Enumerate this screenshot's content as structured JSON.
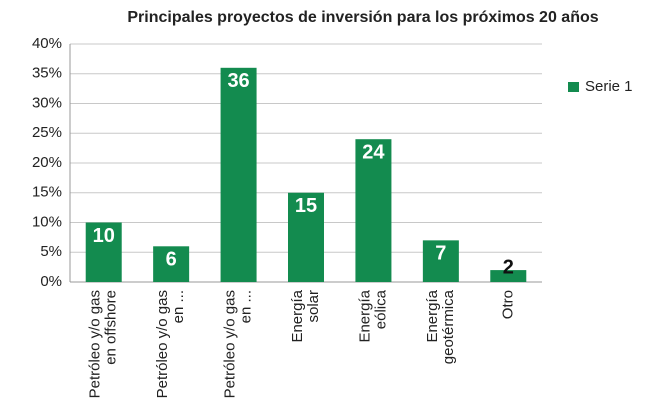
{
  "chart_data": {
    "type": "bar",
    "title": "Principales proyectos de inversión para los próximos 20 años",
    "categories": [
      [
        "Petróleo y/o gas",
        "en offshore"
      ],
      [
        "Petróleo y/o gas",
        "en ..."
      ],
      [
        "Petróleo y/o gas",
        "en ..."
      ],
      [
        "Energía",
        "solar"
      ],
      [
        "Energía",
        "eólica"
      ],
      [
        "Energía",
        "geotérmica"
      ],
      [
        "Otro"
      ]
    ],
    "series": [
      {
        "name": "Serie 1",
        "color": "#138b4f",
        "values": [
          10,
          6,
          36,
          15,
          24,
          7,
          2
        ]
      }
    ],
    "ylim": [
      0,
      40
    ],
    "yticks": [
      {
        "value": 0,
        "label": "0%"
      },
      {
        "value": 5,
        "label": "5%"
      },
      {
        "value": 10,
        "label": "10%"
      },
      {
        "value": 15,
        "label": "15%"
      },
      {
        "value": 20,
        "label": "20%"
      },
      {
        "value": 25,
        "label": "25%"
      },
      {
        "value": 30,
        "label": "30%"
      },
      {
        "value": 35,
        "label": "35%"
      },
      {
        "value": 40,
        "label": "40%"
      }
    ],
    "grid": true,
    "legend": "right"
  }
}
